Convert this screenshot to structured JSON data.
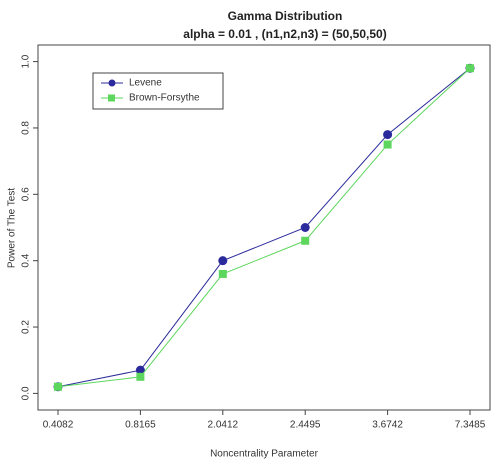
{
  "chart_data": {
    "type": "line",
    "title": "Gamma Distribution",
    "subtitle": "alpha = 0.01 , (n1,n2,n3) = (50,50,50)",
    "x_label": "Noncentrality Parameter",
    "y_label": "Power of The Test",
    "categories": [
      "0.4082",
      "0.8165",
      "2.0412",
      "2.4495",
      "3.6742",
      "7.3485"
    ],
    "series": [
      {
        "name": "Levene",
        "color": "#2a2a9c",
        "marker": "circle",
        "values": [
          0.02,
          0.07,
          0.4,
          0.5,
          0.78,
          0.98
        ]
      },
      {
        "name": "Brown-Forsythe",
        "color": "#5cd65c",
        "marker": "square",
        "values": [
          0.02,
          0.05,
          0.36,
          0.46,
          0.75,
          0.98
        ]
      }
    ],
    "ylim": [
      -0.05,
      1.05
    ],
    "yticks": [
      {
        "value": 0,
        "label": "0.0"
      },
      0.2,
      0.4,
      0.6,
      0.8,
      {
        "value": 1,
        "label": "1.0"
      }
    ],
    "legend": "top-left"
  }
}
